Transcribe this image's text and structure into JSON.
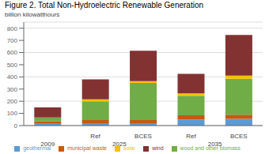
{
  "chart_data": {
    "type": "bar",
    "stacked": true,
    "title": "Figure 2. Total Non-Hydroelectric Renewable Generation",
    "y_label": "billion kilowatthours",
    "categories": [
      null,
      "Ref",
      "BCES",
      "Ref",
      "BCES"
    ],
    "groups": [
      {
        "label": "2009",
        "count": 1
      },
      {
        "label": "2025",
        "count": 2
      },
      {
        "label": "2035",
        "count": 2
      }
    ],
    "series": [
      {
        "name": "geothermal",
        "color": "#5b9bd5",
        "values": [
          20,
          15,
          15,
          50,
          55
        ]
      },
      {
        "name": "municipal waste",
        "color": "#c55a11",
        "values": [
          15,
          30,
          30,
          35,
          35
        ]
      },
      {
        "name": "wood and other biomass",
        "color": "#70ad47",
        "values": [
          30,
          155,
          305,
          160,
          295
        ]
      },
      {
        "name": "solar",
        "color": "#ffc000",
        "values": [
          2,
          15,
          15,
          20,
          25
        ]
      },
      {
        "name": "wind",
        "color": "#833232",
        "values": [
          83,
          165,
          250,
          160,
          335
        ]
      }
    ],
    "ylim": [
      0,
      850
    ],
    "yticks": [
      0,
      100,
      200,
      300,
      400,
      500,
      600,
      700,
      800
    ],
    "grid": true,
    "legend": "bottom"
  }
}
